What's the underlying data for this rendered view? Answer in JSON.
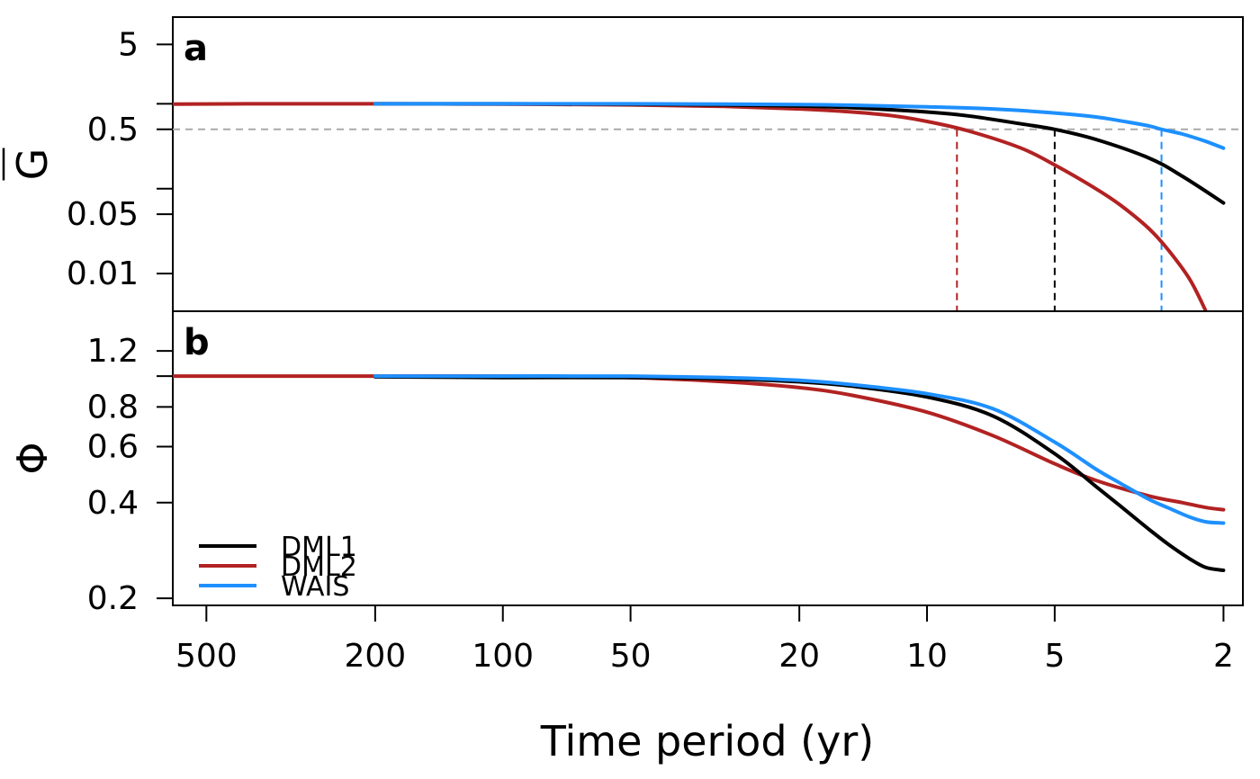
{
  "chart_data": {
    "type": "line",
    "xlabel": "Time period (yr)",
    "x_scale": "log",
    "x_reversed": true,
    "x_ticks": [
      500,
      200,
      100,
      50,
      20,
      10,
      5,
      2
    ],
    "x_tick_labels": [
      "500",
      "200",
      "100",
      "50",
      "20",
      "10",
      "5",
      "2"
    ],
    "xlim": [
      600,
      1.8
    ],
    "legend": {
      "position": "bottom-left",
      "entries": [
        {
          "name": "DML1",
          "color": "#000000"
        },
        {
          "name": "DML2",
          "color": "#b22222"
        },
        {
          "name": "WAIS",
          "color": "#1e90ff"
        }
      ]
    },
    "panels": [
      {
        "id": "a",
        "label": "a",
        "ylabel": "G",
        "ylabel_overline": true,
        "y_scale": "log",
        "ylim": [
          0.0036,
          10.5
        ],
        "y_ticks": [
          5,
          0.5,
          0.05,
          0.01
        ],
        "y_tick_labels": [
          "5",
          "0.5",
          "0.05",
          "0.01"
        ],
        "y_minor_ticks": [
          1,
          0.1
        ],
        "reference_line": {
          "y": 0.5,
          "color": "#aaaaaa",
          "dash": true
        },
        "crossings": [
          {
            "series": "DML2",
            "x": 8.5,
            "color": "#b22222"
          },
          {
            "series": "DML1",
            "x": 5.0,
            "color": "#000000"
          },
          {
            "series": "WAIS",
            "x": 2.8,
            "color": "#1e90ff"
          }
        ],
        "series": [
          {
            "name": "DML2",
            "color": "#b22222",
            "x": [
              600,
              400,
              200,
              100,
              50,
              30,
              20,
              15,
              12,
              10,
              8,
              6,
              5,
              4,
              3.5,
              3,
              2.7,
              2.4,
              2.2
            ],
            "y": [
              0.99,
              1.0,
              1.0,
              0.99,
              0.97,
              0.93,
              0.87,
              0.8,
              0.72,
              0.62,
              0.48,
              0.3,
              0.19,
              0.1,
              0.064,
              0.034,
              0.019,
              0.0085,
              0.0036
            ]
          },
          {
            "name": "DML1",
            "color": "#000000",
            "x": [
              200,
              100,
              50,
              30,
              20,
              15,
              10,
              8,
              6,
              5,
              4,
              3,
              2.5,
              2
            ],
            "y": [
              1.0,
              1.0,
              0.99,
              0.97,
              0.94,
              0.9,
              0.8,
              0.72,
              0.58,
              0.5,
              0.38,
              0.23,
              0.14,
              0.068
            ]
          },
          {
            "name": "WAIS",
            "color": "#1e90ff",
            "x": [
              200,
              100,
              50,
              30,
              20,
              15,
              10,
              7,
              5,
              4,
              3.5,
              3,
              2.8,
              2.5,
              2.2,
              2
            ],
            "y": [
              1.0,
              1.0,
              1.0,
              0.99,
              0.98,
              0.96,
              0.92,
              0.87,
              0.78,
              0.7,
              0.63,
              0.55,
              0.5,
              0.44,
              0.36,
              0.3
            ]
          }
        ]
      },
      {
        "id": "b",
        "label": "b",
        "ylabel": "Φ",
        "y_scale": "log",
        "ylim": [
          0.19,
          1.6
        ],
        "y_ticks": [
          1.2,
          0.8,
          0.6,
          0.4,
          0.2
        ],
        "y_tick_labels": [
          "1.2",
          "0.8",
          "0.6",
          "0.4",
          "0.2"
        ],
        "y_minor_ticks": [
          1.0
        ],
        "series": [
          {
            "name": "DML2",
            "color": "#b22222",
            "x": [
              600,
              400,
              200,
              100,
              50,
              30,
              20,
              15,
              10,
              7,
              5,
              4,
              3,
              2.5,
              2.2,
              2
            ],
            "y": [
              1.0,
              1.0,
              1.0,
              1.0,
              0.99,
              0.96,
              0.92,
              0.87,
              0.77,
              0.65,
              0.53,
              0.47,
              0.42,
              0.4,
              0.386,
              0.38
            ]
          },
          {
            "name": "DML1",
            "color": "#000000",
            "x": [
              200,
              100,
              50,
              30,
              20,
              15,
              10,
              7,
              5,
              4,
              3.5,
              3,
              2.7,
              2.4,
              2.2,
              2
            ],
            "y": [
              0.995,
              0.99,
              0.99,
              0.98,
              0.96,
              0.93,
              0.86,
              0.75,
              0.57,
              0.45,
              0.39,
              0.33,
              0.296,
              0.266,
              0.25,
              0.245
            ]
          },
          {
            "name": "WAIS",
            "color": "#1e90ff",
            "x": [
              200,
              100,
              50,
              30,
              20,
              15,
              10,
              7,
              5,
              4,
              3.5,
              3,
              2.7,
              2.4,
              2.2,
              2
            ],
            "y": [
              1.0,
              1.0,
              1.0,
              0.99,
              0.97,
              0.94,
              0.88,
              0.79,
              0.62,
              0.51,
              0.46,
              0.41,
              0.385,
              0.36,
              0.348,
              0.345
            ]
          }
        ]
      }
    ]
  }
}
